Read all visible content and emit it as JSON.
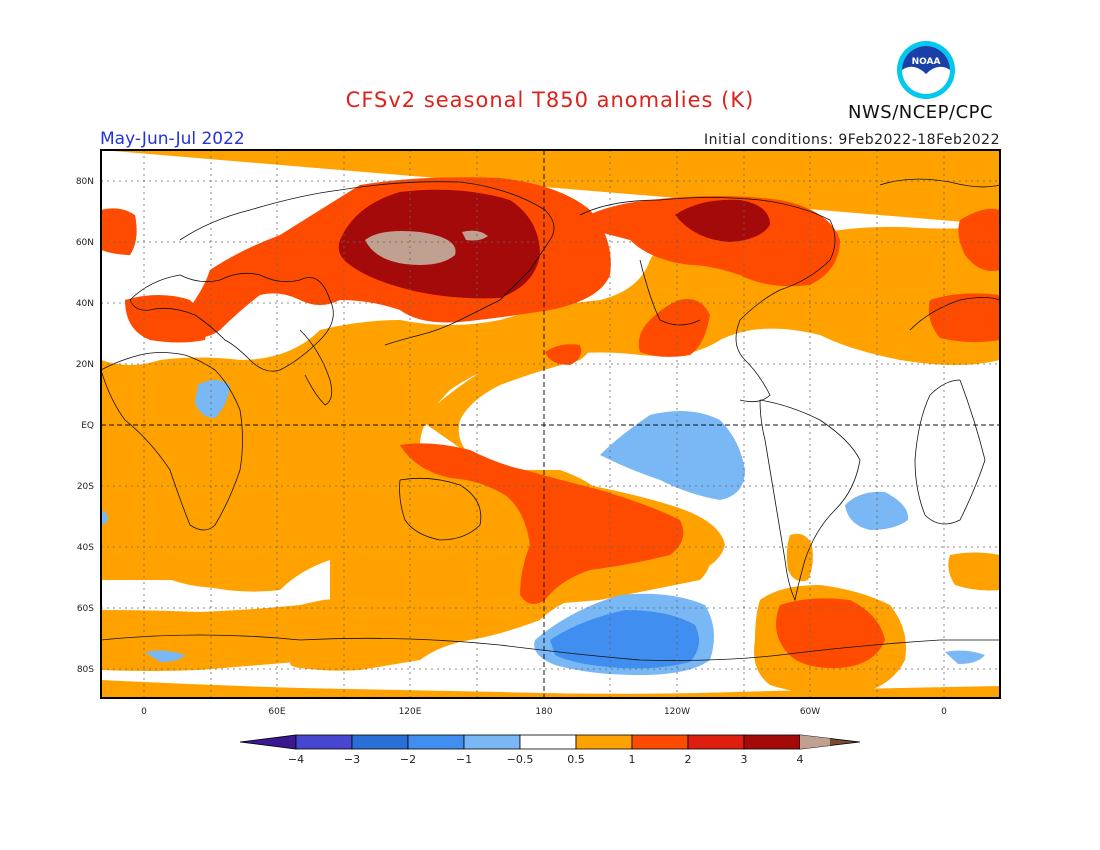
{
  "title": "CFSv2 seasonal T850 anomalies (K)",
  "period": "May-Jun-Jul 2022",
  "initial_conditions": "Initial conditions: 9Feb2022-18Feb2022",
  "agency": "NWS/NCEP/CPC",
  "logo_text": "NOAA",
  "colors": {
    "neg4": "#3a1890",
    "neg3": "#4646d0",
    "neg2": "#2a6fd8",
    "neg1": "#3f8ef0",
    "neg05": "#7ab8f5",
    "neutral": "#ffffff",
    "pos05": "#ffa200",
    "pos1": "#ff4b00",
    "pos2": "#e01e10",
    "pos3": "#a50a0a",
    "pos4": "#c0a090",
    "pos5": "#7a4a30"
  },
  "map": {
    "lat_labels": [
      "80N",
      "60N",
      "40N",
      "20N",
      "EQ",
      "20S",
      "40S",
      "60S",
      "80S"
    ],
    "lon_labels": [
      "0",
      "60E",
      "120E",
      "180",
      "120W",
      "60W",
      "0"
    ]
  },
  "colorbar": {
    "tick_labels": [
      "−4",
      "−3",
      "−2",
      "−1",
      "−0.5",
      "0.5",
      "1",
      "2",
      "3",
      "4"
    ]
  }
}
